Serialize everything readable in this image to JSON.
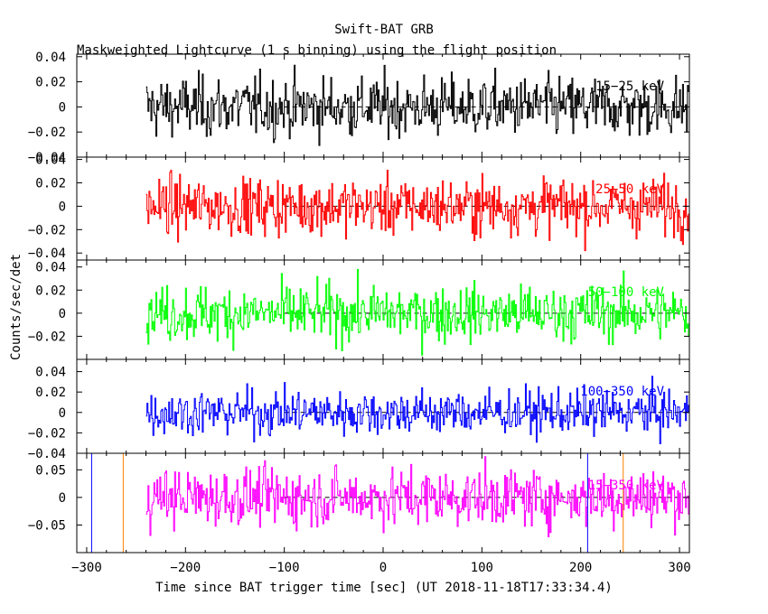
{
  "chart_data": {
    "type": "line",
    "title": "Swift-BAT GRB",
    "subtitle": "Maskweighted Lightcurve (1 s binning) using the flight position",
    "xlabel": "Time since BAT trigger time [sec] (UT 2018-11-18T17:33:34.4)",
    "ylabel": "Counts/sec/det",
    "xlim": [
      -310,
      310
    ],
    "x_ticks": [
      -300,
      -200,
      -100,
      0,
      100,
      200,
      300
    ],
    "x_tick_labels": [
      "−300",
      "−200",
      "−100",
      "0",
      "100",
      "200",
      "300"
    ],
    "data_range": [
      -240,
      310
    ],
    "dashed_zero_from": -100,
    "panels": [
      {
        "name": "15−25 keV",
        "color": "#000000",
        "ylim": [
          -0.04,
          0.042
        ],
        "ticks": [
          -0.04,
          -0.02,
          0,
          0.02,
          0.04
        ],
        "tick_labels": [
          "−0.04",
          "−0.02",
          "0",
          "0.02",
          "0.04"
        ],
        "amplitude": 0.012
      },
      {
        "name": "25−50 keV",
        "color": "#ff0000",
        "ylim": [
          -0.046,
          0.042
        ],
        "ticks": [
          -0.04,
          -0.02,
          0,
          0.02,
          0.04
        ],
        "tick_labels": [
          "−0.04",
          "−0.02",
          "0",
          "0.02",
          "0.04"
        ],
        "amplitude": 0.012
      },
      {
        "name": "50−100 keV",
        "color": "#00ff00",
        "ylim": [
          -0.04,
          0.046
        ],
        "ticks": [
          -0.02,
          0,
          0.02,
          0.04
        ],
        "tick_labels": [
          "−0.02",
          "0",
          "0.02",
          "0.04"
        ],
        "amplitude": 0.012
      },
      {
        "name": "100−350 keV",
        "color": "#0000ff",
        "ylim": [
          -0.04,
          0.052
        ],
        "ticks": [
          -0.04,
          -0.02,
          0,
          0.02,
          0.04
        ],
        "tick_labels": [
          "−0.04",
          "−0.02",
          "0",
          "0.02",
          "0.04"
        ],
        "amplitude": 0.011
      },
      {
        "name": "15−350 keV",
        "color": "#ff00ff",
        "ylim": [
          -0.1,
          0.08
        ],
        "ticks": [
          -0.05,
          0,
          0.05
        ],
        "tick_labels": [
          "−0.05",
          "0",
          "0.05"
        ],
        "amplitude": 0.026
      }
    ],
    "markers": [
      {
        "x": -295,
        "color": "#0000ff"
      },
      {
        "x": -263,
        "color": "#ff8000"
      },
      {
        "x": 207,
        "color": "#0000ff"
      },
      {
        "x": 243,
        "color": "#ff8000"
      }
    ]
  }
}
